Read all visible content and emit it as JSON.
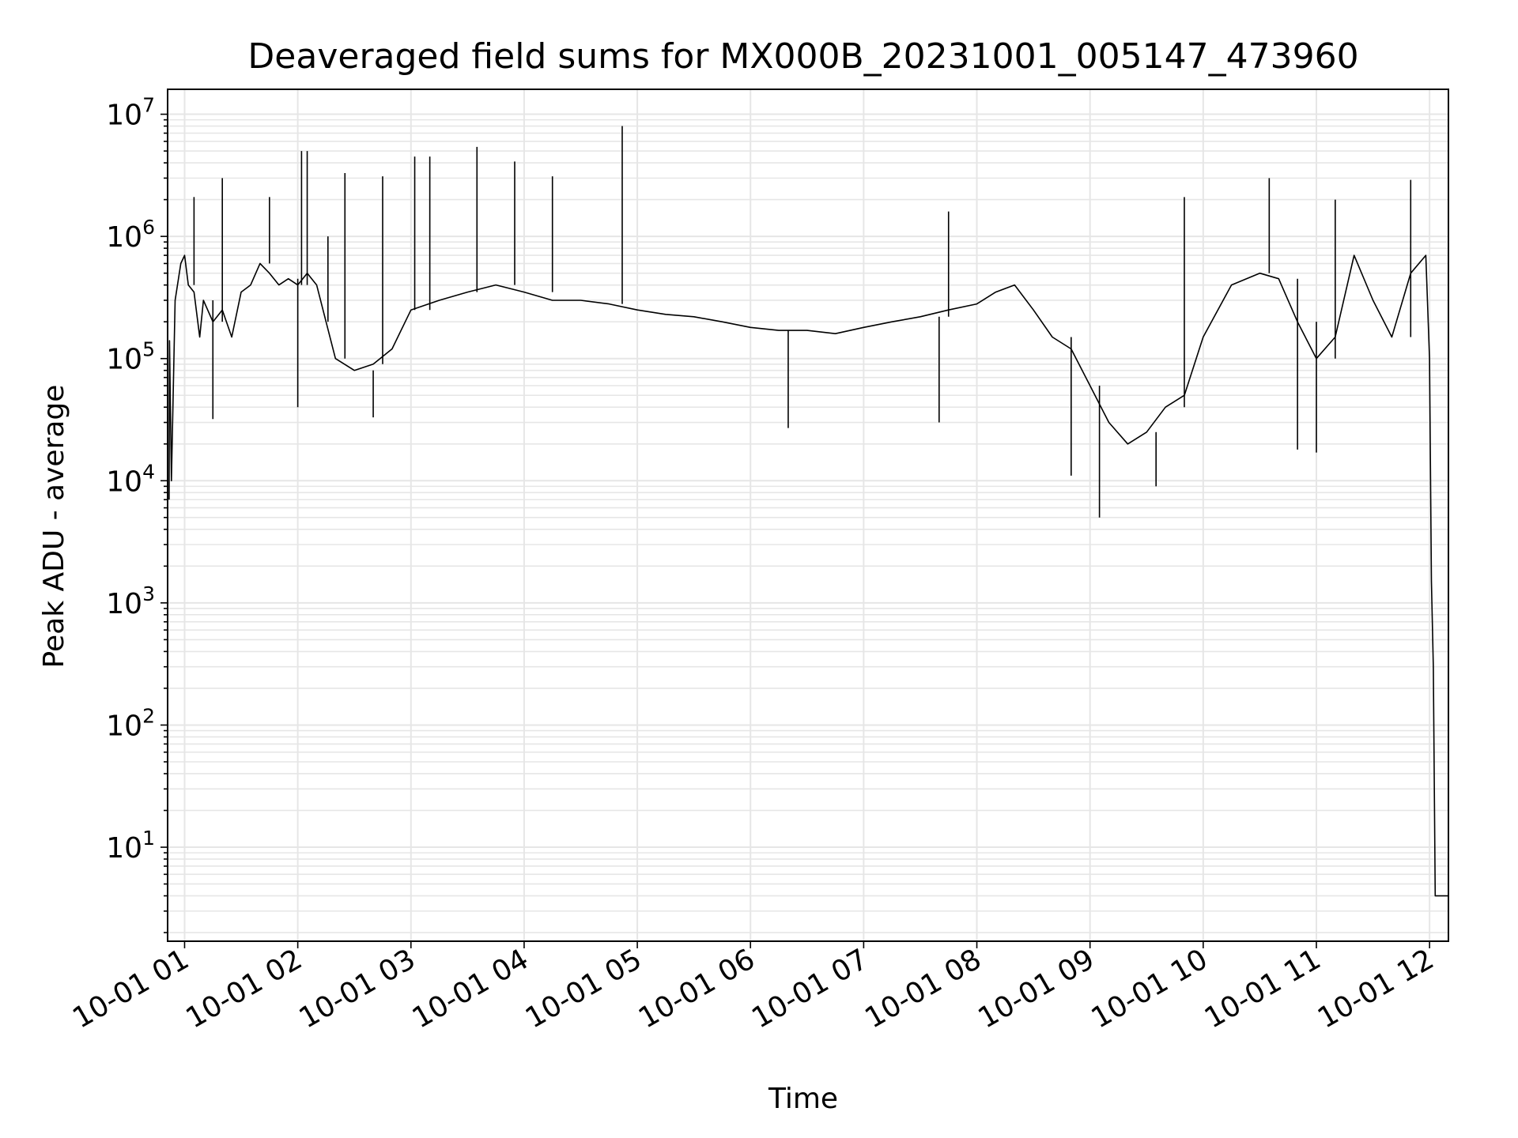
{
  "chart_data": {
    "type": "line",
    "title": "Deaveraged field sums for MX000B_20231001_005147_473960",
    "xlabel": "Time",
    "ylabel": "Peak ADU - average",
    "yscale": "log",
    "ylim": [
      1.7,
      16000000
    ],
    "xlim": [
      "2023-10-01 00:51:00",
      "2023-10-01 12:10:00"
    ],
    "x_ticks": [
      "10-01 01",
      "10-01 02",
      "10-01 03",
      "10-01 04",
      "10-01 05",
      "10-01 06",
      "10-01 07",
      "10-01 08",
      "10-01 09",
      "10-01 10",
      "10-01 11",
      "10-01 12"
    ],
    "y_ticks": [
      {
        "value": 10,
        "base": "10",
        "exp": "1"
      },
      {
        "value": 100,
        "base": "10",
        "exp": "2"
      },
      {
        "value": 1000,
        "base": "10",
        "exp": "3"
      },
      {
        "value": 10000,
        "base": "10",
        "exp": "4"
      },
      {
        "value": 100000,
        "base": "10",
        "exp": "5"
      },
      {
        "value": 1000000,
        "base": "10",
        "exp": "6"
      },
      {
        "value": 10000000,
        "base": "10",
        "exp": "7"
      }
    ],
    "grid": true,
    "line_color": "#000000",
    "grid_color": "#e6e6e6",
    "series": [
      {
        "x": [
          "2023-10-01 00:51:47",
          "2023-10-01 00:52:00",
          "2023-10-01 00:53:00",
          "2023-10-01 00:55:00",
          "2023-10-01 00:58:00",
          "2023-10-01 01:00:00",
          "2023-10-01 01:02:00",
          "2023-10-01 01:05:00",
          "2023-10-01 01:08:00",
          "2023-10-01 01:10:00",
          "2023-10-01 01:15:00",
          "2023-10-01 01:20:00",
          "2023-10-01 01:25:00",
          "2023-10-01 01:30:00",
          "2023-10-01 01:35:00",
          "2023-10-01 01:40:00",
          "2023-10-01 01:45:00",
          "2023-10-01 01:50:00",
          "2023-10-01 01:55:00",
          "2023-10-01 02:00:00",
          "2023-10-01 02:05:00",
          "2023-10-01 02:10:00",
          "2023-10-01 02:15:00",
          "2023-10-01 02:20:00",
          "2023-10-01 02:30:00",
          "2023-10-01 02:40:00",
          "2023-10-01 02:50:00",
          "2023-10-01 03:00:00",
          "2023-10-01 03:15:00",
          "2023-10-01 03:30:00",
          "2023-10-01 03:45:00",
          "2023-10-01 04:00:00",
          "2023-10-01 04:15:00",
          "2023-10-01 04:30:00",
          "2023-10-01 04:45:00",
          "2023-10-01 05:00:00",
          "2023-10-01 05:15:00",
          "2023-10-01 05:30:00",
          "2023-10-01 05:45:00",
          "2023-10-01 06:00:00",
          "2023-10-01 06:15:00",
          "2023-10-01 06:30:00",
          "2023-10-01 06:45:00",
          "2023-10-01 07:00:00",
          "2023-10-01 07:15:00",
          "2023-10-01 07:30:00",
          "2023-10-01 07:45:00",
          "2023-10-01 08:00:00",
          "2023-10-01 08:10:00",
          "2023-10-01 08:20:00",
          "2023-10-01 08:30:00",
          "2023-10-01 08:40:00",
          "2023-10-01 08:50:00",
          "2023-10-01 09:00:00",
          "2023-10-01 09:10:00",
          "2023-10-01 09:20:00",
          "2023-10-01 09:30:00",
          "2023-10-01 09:40:00",
          "2023-10-01 09:50:00",
          "2023-10-01 10:00:00",
          "2023-10-01 10:15:00",
          "2023-10-01 10:30:00",
          "2023-10-01 10:40:00",
          "2023-10-01 10:50:00",
          "2023-10-01 11:00:00",
          "2023-10-01 11:10:00",
          "2023-10-01 11:20:00",
          "2023-10-01 11:30:00",
          "2023-10-01 11:40:00",
          "2023-10-01 11:50:00",
          "2023-10-01 11:58:00",
          "2023-10-01 12:00:00",
          "2023-10-01 12:01:00",
          "2023-10-01 12:02:00",
          "2023-10-01 12:03:00",
          "2023-10-01 12:05:00",
          "2023-10-01 12:10:00"
        ],
        "y": [
          7000,
          140000,
          10000,
          300000,
          600000,
          700000,
          400000,
          350000,
          150000,
          300000,
          200000,
          250000,
          150000,
          350000,
          400000,
          600000,
          500000,
          400000,
          450000,
          400000,
          500000,
          400000,
          200000,
          100000,
          80000,
          90000,
          120000,
          250000,
          300000,
          350000,
          400000,
          350000,
          300000,
          300000,
          280000,
          250000,
          230000,
          220000,
          200000,
          180000,
          170000,
          170000,
          160000,
          180000,
          200000,
          220000,
          250000,
          280000,
          350000,
          400000,
          250000,
          150000,
          120000,
          60000,
          30000,
          20000,
          25000,
          40000,
          50000,
          150000,
          400000,
          500000,
          450000,
          200000,
          100000,
          150000,
          700000,
          300000,
          150000,
          500000,
          700000,
          100000,
          1500,
          300,
          4,
          4,
          4
        ],
        "spikes": [
          {
            "x": "2023-10-01 01:05:00",
            "y": 2100000
          },
          {
            "x": "2023-10-01 01:20:00",
            "y": 3000000
          },
          {
            "x": "2023-10-01 01:45:00",
            "y": 2100000
          },
          {
            "x": "2023-10-01 02:02:00",
            "y": 5000000
          },
          {
            "x": "2023-10-01 02:05:00",
            "y": 5000000
          },
          {
            "x": "2023-10-01 02:16:00",
            "y": 1000000
          },
          {
            "x": "2023-10-01 02:25:00",
            "y": 3300000
          },
          {
            "x": "2023-10-01 02:45:00",
            "y": 3100000
          },
          {
            "x": "2023-10-01 03:02:00",
            "y": 4500000
          },
          {
            "x": "2023-10-01 03:10:00",
            "y": 4500000
          },
          {
            "x": "2023-10-01 03:35:00",
            "y": 5400000
          },
          {
            "x": "2023-10-01 03:55:00",
            "y": 4100000
          },
          {
            "x": "2023-10-01 04:15:00",
            "y": 3100000
          },
          {
            "x": "2023-10-01 04:52:00",
            "y": 8000000
          },
          {
            "x": "2023-10-01 07:45:00",
            "y": 1600000
          },
          {
            "x": "2023-10-01 09:50:00",
            "y": 2100000
          },
          {
            "x": "2023-10-01 10:35:00",
            "y": 3000000
          },
          {
            "x": "2023-10-01 11:10:00",
            "y": 2000000
          },
          {
            "x": "2023-10-01 11:50:00",
            "y": 2900000
          }
        ],
        "dips": [
          {
            "x": "2023-10-01 01:15:00",
            "y": 32000
          },
          {
            "x": "2023-10-01 02:00:00",
            "y": 40000
          },
          {
            "x": "2023-10-01 02:40:00",
            "y": 33000
          },
          {
            "x": "2023-10-01 06:20:00",
            "y": 27000
          },
          {
            "x": "2023-10-01 07:40:00",
            "y": 30000
          },
          {
            "x": "2023-10-01 08:50:00",
            "y": 11000
          },
          {
            "x": "2023-10-01 09:05:00",
            "y": 5000
          },
          {
            "x": "2023-10-01 09:35:00",
            "y": 9000
          },
          {
            "x": "2023-10-01 10:50:00",
            "y": 18000
          },
          {
            "x": "2023-10-01 11:00:00",
            "y": 17000
          }
        ]
      }
    ]
  }
}
